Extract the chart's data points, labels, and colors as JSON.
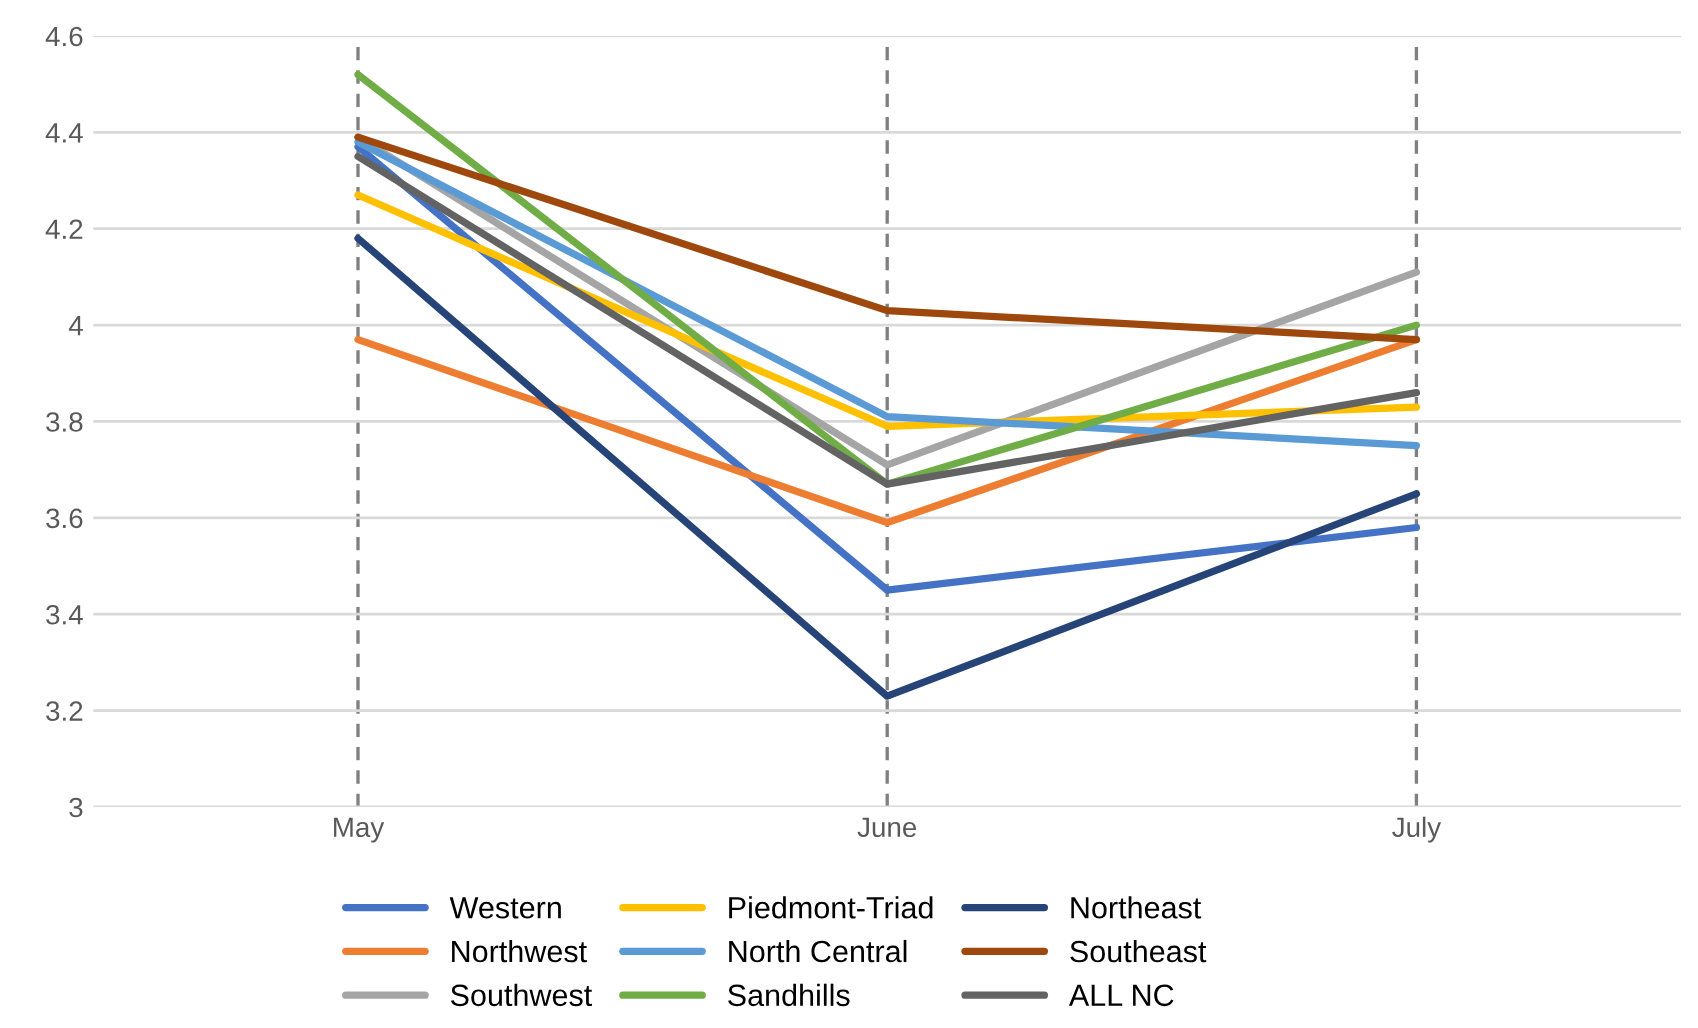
{
  "chart_data": {
    "type": "line",
    "categories": [
      "May",
      "June",
      "July"
    ],
    "ylim": [
      3,
      4.6
    ],
    "yticks": [
      3,
      3.2,
      3.4,
      3.6,
      3.8,
      4,
      4.2,
      4.4,
      4.6
    ],
    "grid": true,
    "legend": "bottom",
    "marker": "none",
    "line_style": "solid",
    "series": [
      {
        "name": "Western",
        "color": "#4472c4",
        "values": [
          4.37,
          3.45,
          3.58
        ]
      },
      {
        "name": "Northwest",
        "color": "#ed7d31",
        "values": [
          3.97,
          3.59,
          3.97
        ]
      },
      {
        "name": "Southwest",
        "color": "#a5a5a5",
        "values": [
          4.39,
          3.71,
          4.11
        ]
      },
      {
        "name": "Piedmont-Triad",
        "color": "#ffc000",
        "values": [
          4.27,
          3.79,
          3.83
        ]
      },
      {
        "name": "North Central",
        "color": "#5b9bd5",
        "values": [
          4.38,
          3.81,
          3.75
        ]
      },
      {
        "name": "Sandhills",
        "color": "#70ad47",
        "values": [
          4.52,
          3.67,
          4.0
        ]
      },
      {
        "name": "Northeast",
        "color": "#264478",
        "values": [
          4.18,
          3.23,
          3.65
        ]
      },
      {
        "name": "Southeast",
        "color": "#9e480e",
        "values": [
          4.39,
          4.03,
          3.97
        ]
      },
      {
        "name": "ALL NC",
        "color": "#636363",
        "values": [
          4.35,
          3.67,
          3.86
        ]
      }
    ]
  }
}
